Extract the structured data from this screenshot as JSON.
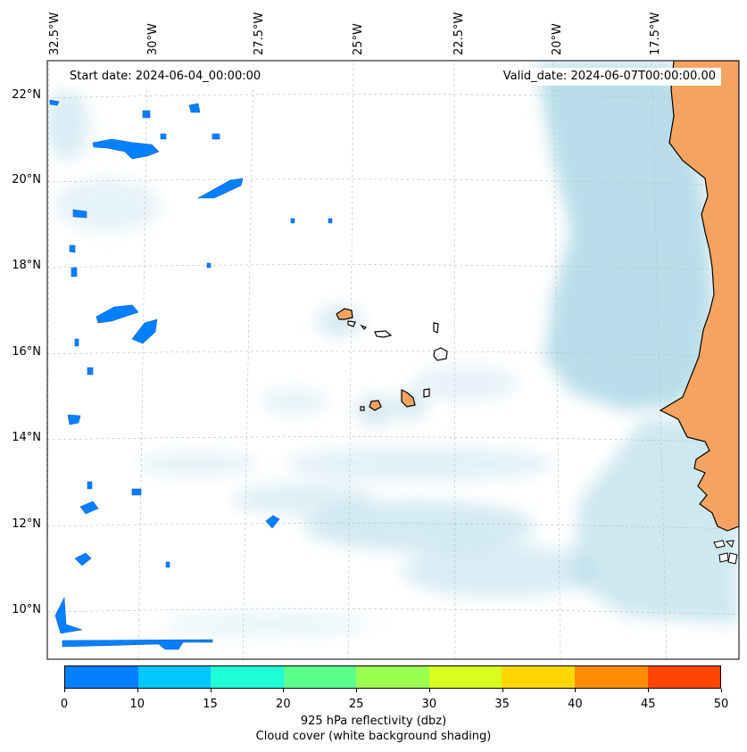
{
  "map": {
    "start_label": "Start date: 2024-06-04_00:00:00",
    "valid_label": "Valid_date: 2024-06-07T00:00:00.00",
    "lon_labels": [
      "32.5°W",
      "30°W",
      "27.5°W",
      "25°W",
      "22.5°W",
      "20°W",
      "17.5°W"
    ],
    "lat_labels": [
      "22°N",
      "20°N",
      "18°N",
      "16°N",
      "14°N",
      "12°N",
      "10°N"
    ],
    "land_color": "#f4a460",
    "cloud_color": "#add8e6",
    "reflectivity_color": "#0080ff"
  },
  "colorbar": {
    "ticks": [
      "0",
      "10",
      "15",
      "20",
      "25",
      "30",
      "35",
      "40",
      "45",
      "50"
    ],
    "colors": [
      "#0080ff",
      "#00c8ff",
      "#1effd8",
      "#5aff8c",
      "#9aff50",
      "#d8ff1e",
      "#ffd700",
      "#ff8c00",
      "#ff4500"
    ],
    "label_line1": "925 hPa reflectivity (dbz)",
    "label_line2": "Cloud cover (white background shading)"
  }
}
